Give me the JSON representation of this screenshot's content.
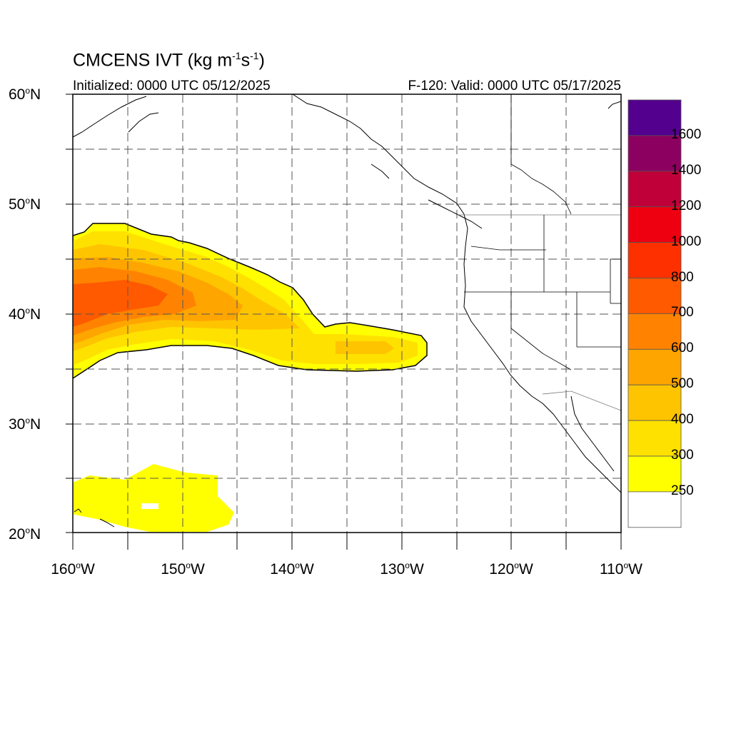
{
  "title": {
    "text": "CMCENS IVT (kg m",
    "exp1": "-1",
    "mid": "s",
    "exp2": "-1",
    "close": ")"
  },
  "initialized": "Initialized: 0000 UTC 05/12/2025",
  "valid": "F-120: Valid: 0000 UTC 05/17/2025",
  "lat_labels": [
    {
      "num": "60",
      "suffix": "N"
    },
    {
      "num": "50",
      "suffix": "N"
    },
    {
      "num": "40",
      "suffix": "N"
    },
    {
      "num": "30",
      "suffix": "N"
    },
    {
      "num": "20",
      "suffix": "N"
    }
  ],
  "lon_labels": [
    {
      "num": "160",
      "suffix": "W"
    },
    {
      "num": "150",
      "suffix": "W"
    },
    {
      "num": "140",
      "suffix": "W"
    },
    {
      "num": "130",
      "suffix": "W"
    },
    {
      "num": "120",
      "suffix": "W"
    },
    {
      "num": "110",
      "suffix": "W"
    }
  ],
  "degree_symbol": "o",
  "map": {
    "lon_range": [
      -160,
      -110
    ],
    "lat_range": [
      20,
      60
    ],
    "gridlines": "dashed, every 5 degrees"
  },
  "colorbar": {
    "labels": [
      "1600",
      "1400",
      "1200",
      "1000",
      "800",
      "700",
      "600",
      "500",
      "400",
      "300",
      "250"
    ],
    "colors": [
      "#53008F",
      "#8C0060",
      "#C00038",
      "#EE0010",
      "#FF3000",
      "#FF5A00",
      "#FF8300",
      "#FFA500",
      "#FFC400",
      "#FFE100",
      "#FFFF00",
      "#FFFFFF"
    ]
  }
}
